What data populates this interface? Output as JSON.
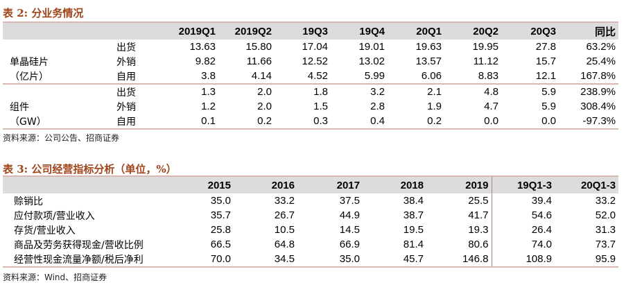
{
  "table2": {
    "title": "表 2:  分业务情况",
    "headers": [
      "",
      "",
      "2019Q1",
      "2019Q2",
      "19Q3",
      "19Q4",
      "20Q1",
      "20Q2",
      "20Q3",
      "同比"
    ],
    "groups": [
      {
        "label": "单晶硅片",
        "unit": "（亿片）",
        "rows": [
          {
            "sub": "出货",
            "values": [
              "13.63",
              "15.80",
              "17.04",
              "19.01",
              "19.63",
              "19.95",
              "27.8",
              "63.2%"
            ]
          },
          {
            "sub": "外销",
            "values": [
              "9.82",
              "11.66",
              "12.52",
              "13.02",
              "13.57",
              "11.12",
              "15.7",
              "25.4%"
            ]
          },
          {
            "sub": "自用",
            "values": [
              "3.8",
              "4.14",
              "4.52",
              "5.99",
              "6.06",
              "8.83",
              "12.1",
              "167.8%"
            ]
          }
        ]
      },
      {
        "label": "组件",
        "unit": "（GW）",
        "rows": [
          {
            "sub": "出货",
            "values": [
              "1.3",
              "2.0",
              "1.8",
              "3.2",
              "2.1",
              "4.8",
              "5.9",
              "238.9%"
            ]
          },
          {
            "sub": "外销",
            "values": [
              "1.2",
              "2.0",
              "1.5",
              "2.8",
              "1.9",
              "4.7",
              "5.9",
              "308.4%"
            ]
          },
          {
            "sub": "自用",
            "values": [
              "0.1",
              "0.2",
              "0.3",
              "0.4",
              "0.2",
              "0.0",
              "0.0",
              "-97.3%"
            ]
          }
        ]
      }
    ],
    "source": "资料来源：公司公告、招商证券"
  },
  "table3": {
    "title": "表 3:  公司经营指标分析（单位，%）",
    "headers": [
      "",
      "2015",
      "2016",
      "2017",
      "2018",
      "2019",
      "19Q1-3",
      "20Q1-3"
    ],
    "rows": [
      {
        "label": "赊销比",
        "values": [
          "35.0",
          "33.2",
          "37.5",
          "38.4",
          "25.5",
          "39.4",
          "33.2"
        ]
      },
      {
        "label": "应付款项/营业收入",
        "values": [
          "35.7",
          "26.7",
          "44.9",
          "38.7",
          "41.7",
          "54.6",
          "52.0"
        ]
      },
      {
        "label": "存货/营业收入",
        "values": [
          "25.8",
          "10.5",
          "14.5",
          "19.5",
          "19.3",
          "26.4",
          "31.3"
        ]
      },
      {
        "label": "商品及劳务获得现金/营收比例",
        "values": [
          "66.5",
          "64.8",
          "66.9",
          "81.4",
          "80.6",
          "74.0",
          "73.7"
        ]
      },
      {
        "label": "经营性现金流量净额/税后净利",
        "values": [
          "70.0",
          "34.5",
          "35.0",
          "45.7",
          "146.8",
          "108.9",
          "95.9"
        ]
      }
    ],
    "source": "资料来源：Wind、招商证券"
  }
}
